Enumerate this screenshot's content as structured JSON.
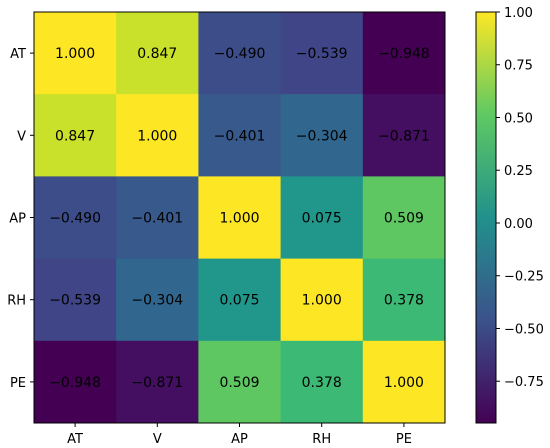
{
  "chart_data": {
    "type": "heatmap",
    "title": "",
    "xlabel": "",
    "ylabel": "",
    "x_categories": [
      "AT",
      "V",
      "AP",
      "RH",
      "PE"
    ],
    "y_categories": [
      "AT",
      "V",
      "AP",
      "RH",
      "PE"
    ],
    "values": [
      [
        1.0,
        0.847,
        -0.49,
        -0.539,
        -0.948
      ],
      [
        0.847,
        1.0,
        -0.401,
        -0.304,
        -0.871
      ],
      [
        -0.49,
        -0.401,
        1.0,
        0.075,
        0.509
      ],
      [
        -0.539,
        -0.304,
        0.075,
        1.0,
        0.378
      ],
      [
        -0.948,
        -0.871,
        0.509,
        0.378,
        1.0
      ]
    ],
    "cell_labels": [
      [
        "1.000",
        "0.847",
        "−0.490",
        "−0.539",
        "−0.948"
      ],
      [
        "0.847",
        "1.000",
        "−0.401",
        "−0.304",
        "−0.871"
      ],
      [
        "−0.490",
        "−0.401",
        "1.000",
        "0.075",
        "0.509"
      ],
      [
        "−0.539",
        "−0.304",
        "0.075",
        "1.000",
        "0.378"
      ],
      [
        "−0.948",
        "−0.871",
        "0.509",
        "0.378",
        "1.000"
      ]
    ],
    "colormap": "viridis",
    "color_range": [
      -0.948,
      1.0
    ],
    "colorbar": {
      "placement": "right",
      "ticks": [
        1.0,
        0.75,
        0.5,
        0.25,
        0.0,
        -0.25,
        -0.5,
        -0.75
      ],
      "tick_labels": [
        "1.00",
        "0.75",
        "0.50",
        "0.25",
        "0.00",
        "−0.25",
        "−0.50",
        "−0.75"
      ]
    },
    "grid": false
  }
}
